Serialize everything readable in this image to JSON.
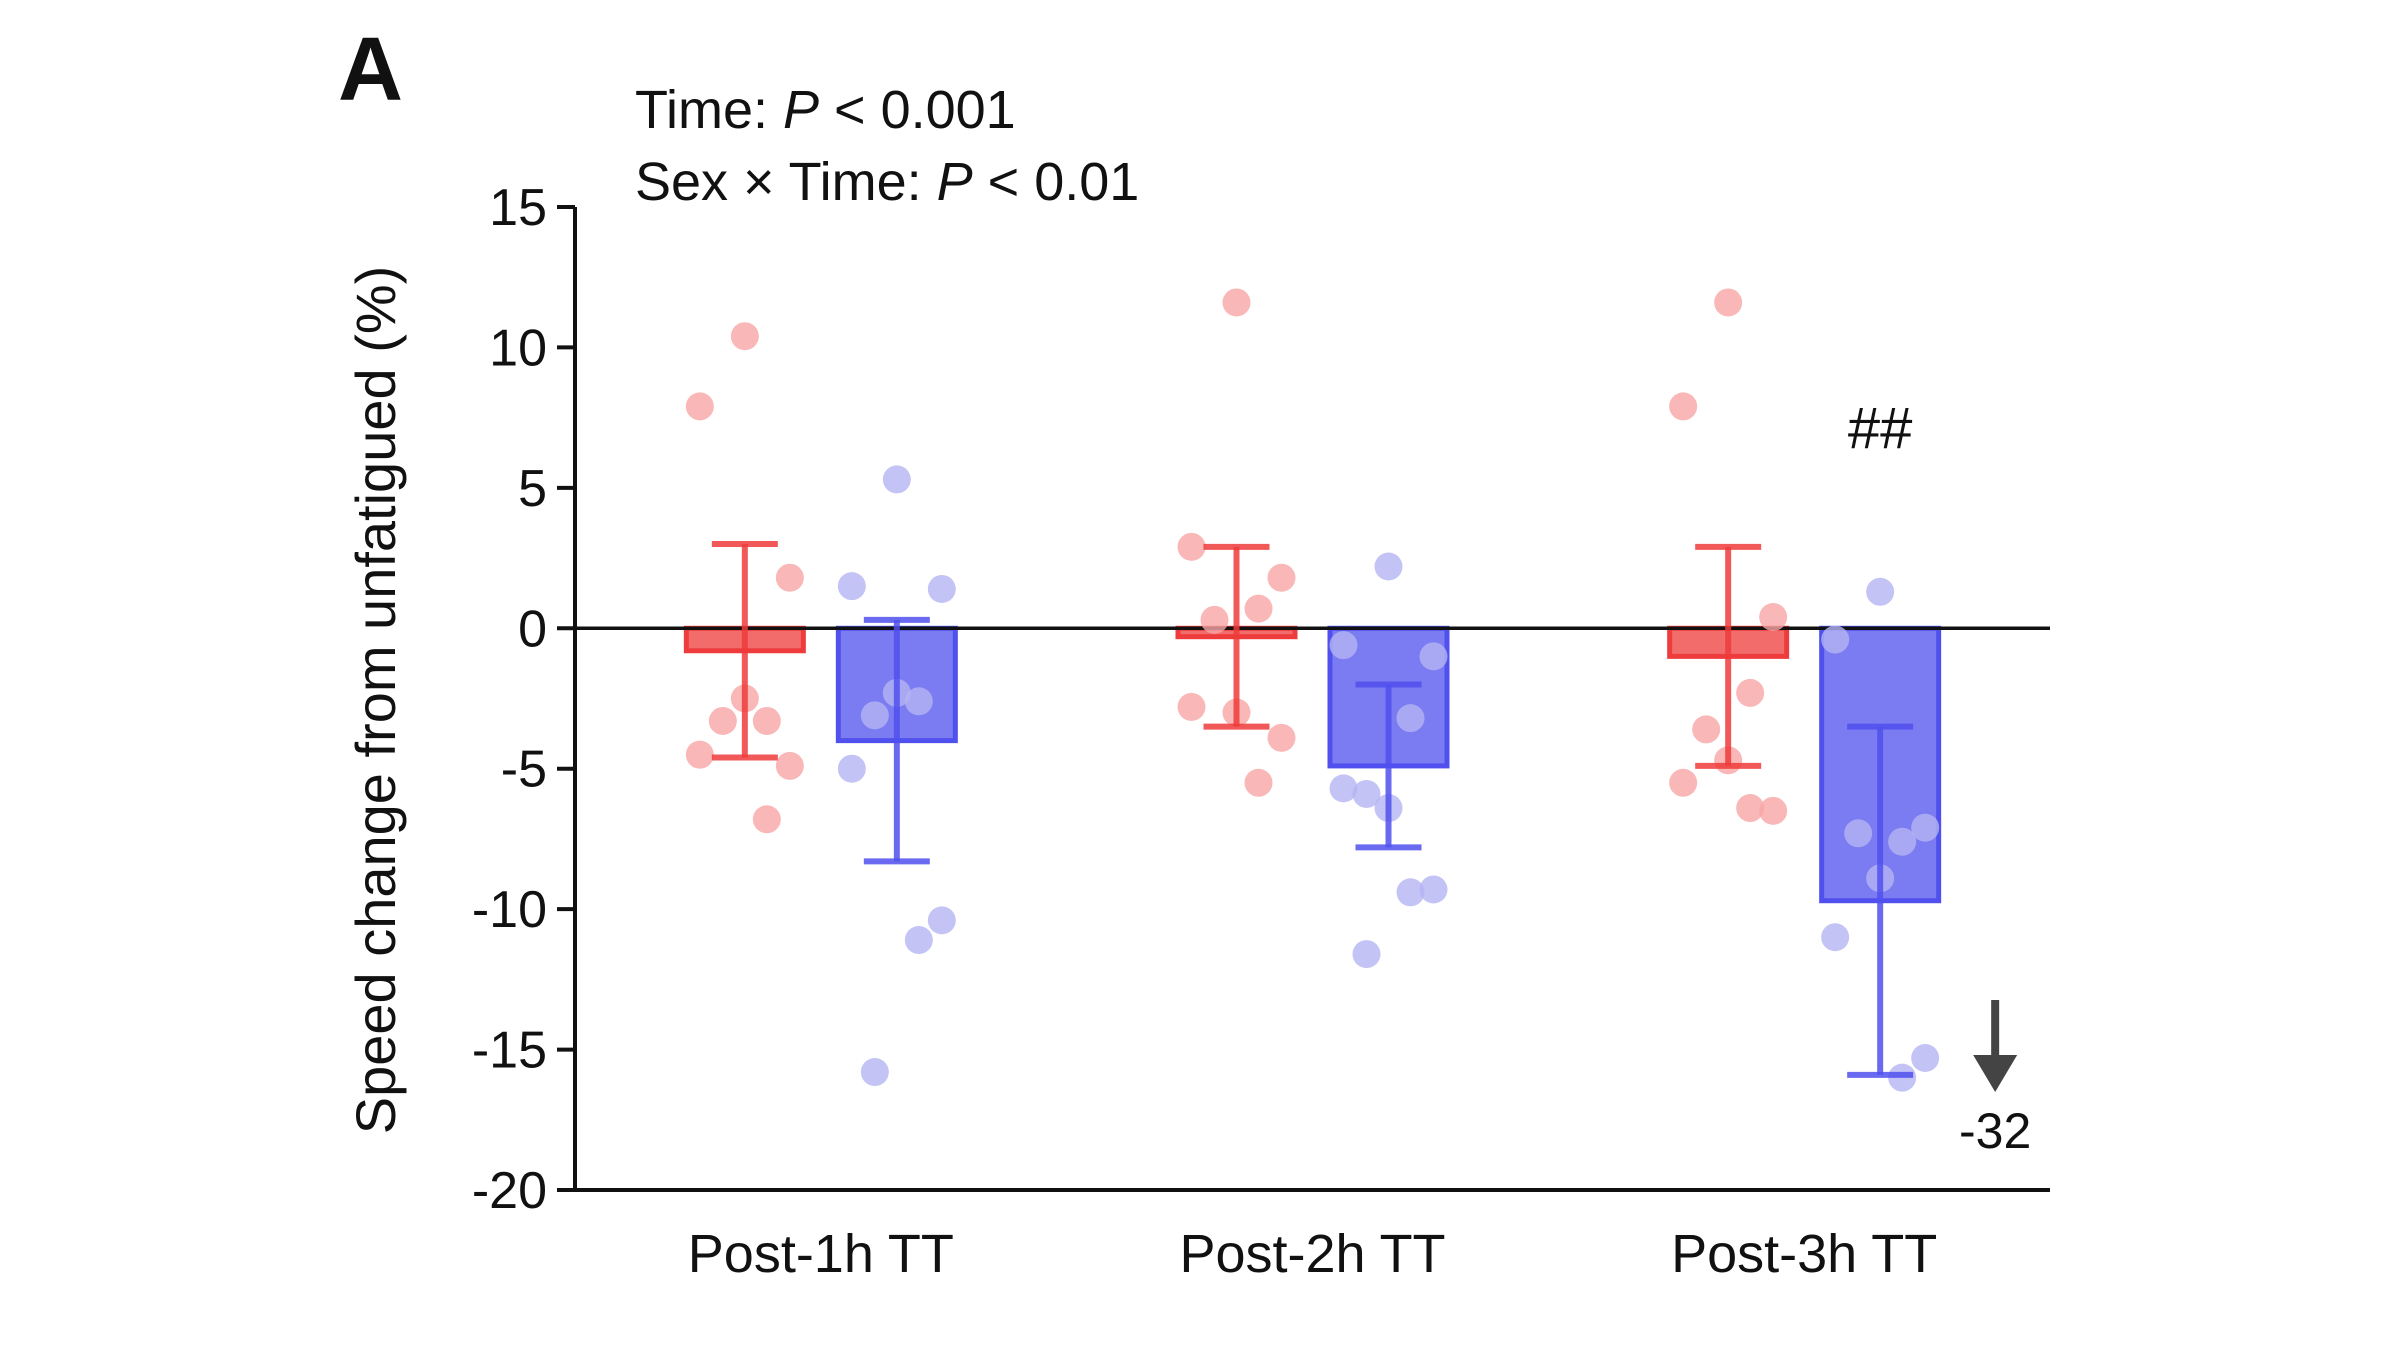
{
  "chart_data": {
    "type": "bar",
    "panel_label": "A",
    "stats": [
      [
        "Time: ",
        "P",
        " < 0.001"
      ],
      [
        "Sex × Time: ",
        "P",
        " < 0.01"
      ]
    ],
    "y_label": "Speed change from unfatigued (%)",
    "categories": [
      "Post-1h TT",
      "Post-2h TT",
      "Post-3h TT"
    ],
    "series": [
      {
        "color": "#ee3b3b",
        "point_color": "#f7a5a5",
        "values": [
          -0.8,
          -0.3,
          -1.0
        ],
        "errors": [
          3.8,
          3.2,
          3.9
        ],
        "points": [
          [
            10.4,
            7.9,
            1.8,
            -3.3,
            -3.3,
            -2.5,
            -4.5,
            -4.9,
            -6.8
          ],
          [
            11.6,
            2.9,
            1.8,
            0.7,
            0.3,
            -3.0,
            -2.8,
            -3.9,
            -5.5
          ],
          [
            11.6,
            7.9,
            0.4,
            -2.3,
            -3.6,
            -4.7,
            -5.5,
            -6.5,
            -6.4
          ]
        ]
      },
      {
        "color": "#5050ee",
        "point_color": "#b4b4f2",
        "values": [
          -4.0,
          -4.9,
          -9.7
        ],
        "errors": [
          4.3,
          2.9,
          6.2
        ],
        "points": [
          [
            5.3,
            1.5,
            1.4,
            -2.6,
            -3.1,
            -2.3,
            -5.0,
            -10.4,
            -11.1,
            -15.8
          ],
          [
            2.2,
            -0.6,
            -1.0,
            -3.2,
            -5.9,
            -6.4,
            -5.7,
            -9.3,
            -9.4,
            -11.6
          ],
          [
            1.3,
            -0.4,
            -7.1,
            -7.6,
            -7.3,
            -8.9,
            -11.0,
            -15.3,
            -16.0
          ]
        ]
      }
    ],
    "significance": "##",
    "offscale_value": -32,
    "ylim": [
      -20,
      15
    ],
    "yticks": [
      -20,
      -15,
      -10,
      -5,
      0,
      5,
      10,
      15
    ]
  }
}
